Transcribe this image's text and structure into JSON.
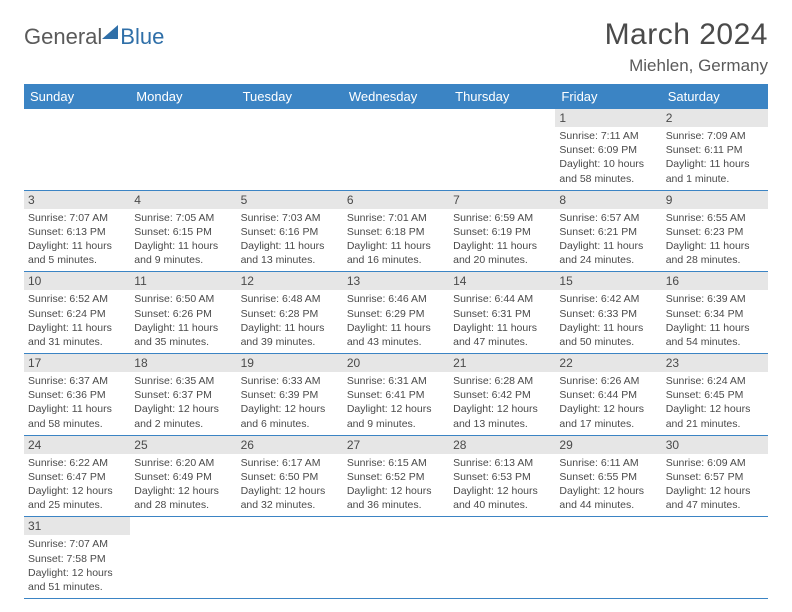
{
  "logo": {
    "part1": "General",
    "part2": "Blue"
  },
  "title": "March 2024",
  "location": "Miehlen, Germany",
  "columns": [
    "Sunday",
    "Monday",
    "Tuesday",
    "Wednesday",
    "Thursday",
    "Friday",
    "Saturday"
  ],
  "colors": {
    "header_bg": "#3b84c4",
    "header_text": "#ffffff",
    "daynum_bg": "#e6e6e6",
    "border": "#3b84c4",
    "accent": "#2f6fa8"
  },
  "weeks": [
    [
      {
        "n": "",
        "sunrise": "",
        "sunset": "",
        "daylight": ""
      },
      {
        "n": "",
        "sunrise": "",
        "sunset": "",
        "daylight": ""
      },
      {
        "n": "",
        "sunrise": "",
        "sunset": "",
        "daylight": ""
      },
      {
        "n": "",
        "sunrise": "",
        "sunset": "",
        "daylight": ""
      },
      {
        "n": "",
        "sunrise": "",
        "sunset": "",
        "daylight": ""
      },
      {
        "n": "1",
        "sunrise": "Sunrise: 7:11 AM",
        "sunset": "Sunset: 6:09 PM",
        "daylight": "Daylight: 10 hours and 58 minutes."
      },
      {
        "n": "2",
        "sunrise": "Sunrise: 7:09 AM",
        "sunset": "Sunset: 6:11 PM",
        "daylight": "Daylight: 11 hours and 1 minute."
      }
    ],
    [
      {
        "n": "3",
        "sunrise": "Sunrise: 7:07 AM",
        "sunset": "Sunset: 6:13 PM",
        "daylight": "Daylight: 11 hours and 5 minutes."
      },
      {
        "n": "4",
        "sunrise": "Sunrise: 7:05 AM",
        "sunset": "Sunset: 6:15 PM",
        "daylight": "Daylight: 11 hours and 9 minutes."
      },
      {
        "n": "5",
        "sunrise": "Sunrise: 7:03 AM",
        "sunset": "Sunset: 6:16 PM",
        "daylight": "Daylight: 11 hours and 13 minutes."
      },
      {
        "n": "6",
        "sunrise": "Sunrise: 7:01 AM",
        "sunset": "Sunset: 6:18 PM",
        "daylight": "Daylight: 11 hours and 16 minutes."
      },
      {
        "n": "7",
        "sunrise": "Sunrise: 6:59 AM",
        "sunset": "Sunset: 6:19 PM",
        "daylight": "Daylight: 11 hours and 20 minutes."
      },
      {
        "n": "8",
        "sunrise": "Sunrise: 6:57 AM",
        "sunset": "Sunset: 6:21 PM",
        "daylight": "Daylight: 11 hours and 24 minutes."
      },
      {
        "n": "9",
        "sunrise": "Sunrise: 6:55 AM",
        "sunset": "Sunset: 6:23 PM",
        "daylight": "Daylight: 11 hours and 28 minutes."
      }
    ],
    [
      {
        "n": "10",
        "sunrise": "Sunrise: 6:52 AM",
        "sunset": "Sunset: 6:24 PM",
        "daylight": "Daylight: 11 hours and 31 minutes."
      },
      {
        "n": "11",
        "sunrise": "Sunrise: 6:50 AM",
        "sunset": "Sunset: 6:26 PM",
        "daylight": "Daylight: 11 hours and 35 minutes."
      },
      {
        "n": "12",
        "sunrise": "Sunrise: 6:48 AM",
        "sunset": "Sunset: 6:28 PM",
        "daylight": "Daylight: 11 hours and 39 minutes."
      },
      {
        "n": "13",
        "sunrise": "Sunrise: 6:46 AM",
        "sunset": "Sunset: 6:29 PM",
        "daylight": "Daylight: 11 hours and 43 minutes."
      },
      {
        "n": "14",
        "sunrise": "Sunrise: 6:44 AM",
        "sunset": "Sunset: 6:31 PM",
        "daylight": "Daylight: 11 hours and 47 minutes."
      },
      {
        "n": "15",
        "sunrise": "Sunrise: 6:42 AM",
        "sunset": "Sunset: 6:33 PM",
        "daylight": "Daylight: 11 hours and 50 minutes."
      },
      {
        "n": "16",
        "sunrise": "Sunrise: 6:39 AM",
        "sunset": "Sunset: 6:34 PM",
        "daylight": "Daylight: 11 hours and 54 minutes."
      }
    ],
    [
      {
        "n": "17",
        "sunrise": "Sunrise: 6:37 AM",
        "sunset": "Sunset: 6:36 PM",
        "daylight": "Daylight: 11 hours and 58 minutes."
      },
      {
        "n": "18",
        "sunrise": "Sunrise: 6:35 AM",
        "sunset": "Sunset: 6:37 PM",
        "daylight": "Daylight: 12 hours and 2 minutes."
      },
      {
        "n": "19",
        "sunrise": "Sunrise: 6:33 AM",
        "sunset": "Sunset: 6:39 PM",
        "daylight": "Daylight: 12 hours and 6 minutes."
      },
      {
        "n": "20",
        "sunrise": "Sunrise: 6:31 AM",
        "sunset": "Sunset: 6:41 PM",
        "daylight": "Daylight: 12 hours and 9 minutes."
      },
      {
        "n": "21",
        "sunrise": "Sunrise: 6:28 AM",
        "sunset": "Sunset: 6:42 PM",
        "daylight": "Daylight: 12 hours and 13 minutes."
      },
      {
        "n": "22",
        "sunrise": "Sunrise: 6:26 AM",
        "sunset": "Sunset: 6:44 PM",
        "daylight": "Daylight: 12 hours and 17 minutes."
      },
      {
        "n": "23",
        "sunrise": "Sunrise: 6:24 AM",
        "sunset": "Sunset: 6:45 PM",
        "daylight": "Daylight: 12 hours and 21 minutes."
      }
    ],
    [
      {
        "n": "24",
        "sunrise": "Sunrise: 6:22 AM",
        "sunset": "Sunset: 6:47 PM",
        "daylight": "Daylight: 12 hours and 25 minutes."
      },
      {
        "n": "25",
        "sunrise": "Sunrise: 6:20 AM",
        "sunset": "Sunset: 6:49 PM",
        "daylight": "Daylight: 12 hours and 28 minutes."
      },
      {
        "n": "26",
        "sunrise": "Sunrise: 6:17 AM",
        "sunset": "Sunset: 6:50 PM",
        "daylight": "Daylight: 12 hours and 32 minutes."
      },
      {
        "n": "27",
        "sunrise": "Sunrise: 6:15 AM",
        "sunset": "Sunset: 6:52 PM",
        "daylight": "Daylight: 12 hours and 36 minutes."
      },
      {
        "n": "28",
        "sunrise": "Sunrise: 6:13 AM",
        "sunset": "Sunset: 6:53 PM",
        "daylight": "Daylight: 12 hours and 40 minutes."
      },
      {
        "n": "29",
        "sunrise": "Sunrise: 6:11 AM",
        "sunset": "Sunset: 6:55 PM",
        "daylight": "Daylight: 12 hours and 44 minutes."
      },
      {
        "n": "30",
        "sunrise": "Sunrise: 6:09 AM",
        "sunset": "Sunset: 6:57 PM",
        "daylight": "Daylight: 12 hours and 47 minutes."
      }
    ],
    [
      {
        "n": "31",
        "sunrise": "Sunrise: 7:07 AM",
        "sunset": "Sunset: 7:58 PM",
        "daylight": "Daylight: 12 hours and 51 minutes."
      },
      {
        "n": "",
        "sunrise": "",
        "sunset": "",
        "daylight": ""
      },
      {
        "n": "",
        "sunrise": "",
        "sunset": "",
        "daylight": ""
      },
      {
        "n": "",
        "sunrise": "",
        "sunset": "",
        "daylight": ""
      },
      {
        "n": "",
        "sunrise": "",
        "sunset": "",
        "daylight": ""
      },
      {
        "n": "",
        "sunrise": "",
        "sunset": "",
        "daylight": ""
      },
      {
        "n": "",
        "sunrise": "",
        "sunset": "",
        "daylight": ""
      }
    ]
  ]
}
